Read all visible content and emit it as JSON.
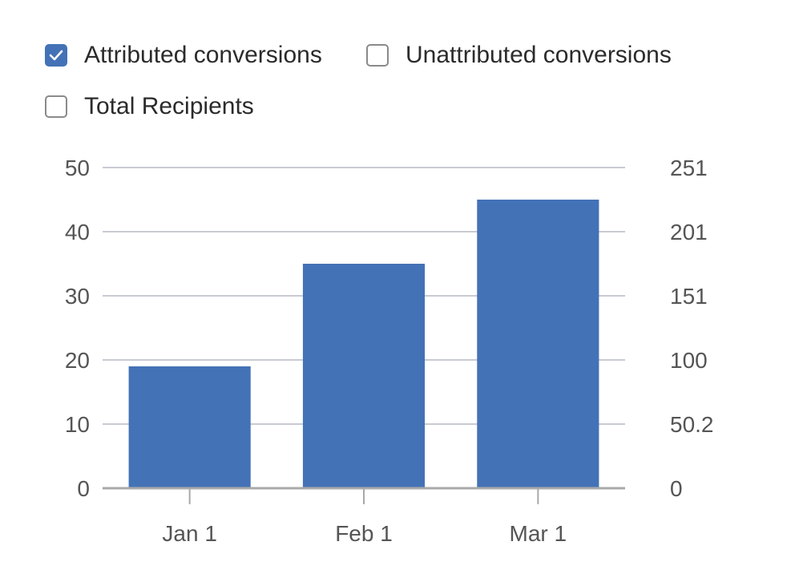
{
  "legend": {
    "items": [
      {
        "label": "Attributed conversions",
        "checked": true
      },
      {
        "label": "Unattributed conversions",
        "checked": false
      },
      {
        "label": "Total Recipients",
        "checked": false
      }
    ]
  },
  "colors": {
    "bar": "#4472b6",
    "checkbox_checked": "#4472b6",
    "grid": "#c9cbd3",
    "axis": "#a9a9a9"
  },
  "chart_data": {
    "type": "bar",
    "categories": [
      "Jan 1",
      "Feb 1",
      "Mar 1"
    ],
    "series": [
      {
        "name": "Attributed conversions",
        "values": [
          19,
          35,
          45
        ]
      }
    ],
    "ylim": [
      0,
      50
    ],
    "yticks": [
      "0",
      "10",
      "20",
      "30",
      "40",
      "50"
    ],
    "y2ticks": [
      "0",
      "50.2",
      "100",
      "151",
      "201",
      "251"
    ],
    "grid": true,
    "legend_position": "top-left"
  }
}
